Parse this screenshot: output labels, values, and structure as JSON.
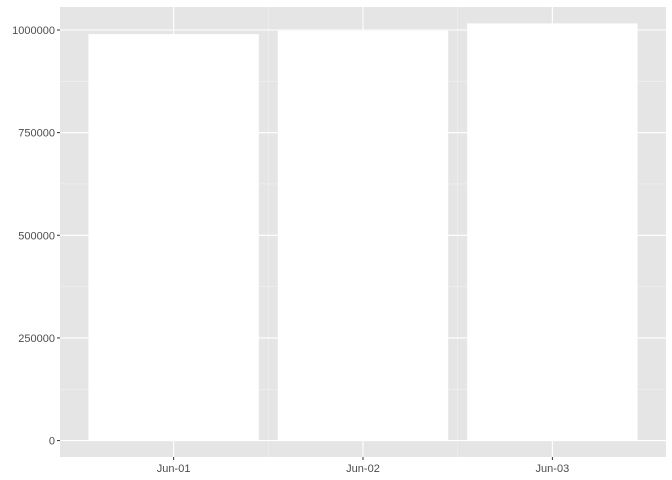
{
  "chart_data": {
    "type": "bar",
    "categories": [
      "Jun-01",
      "Jun-02",
      "Jun-03"
    ],
    "values": [
      990000,
      998000,
      1016000
    ],
    "ylim": [
      -40000,
      1056000
    ],
    "y_ticks": [
      0,
      250000,
      500000,
      750000,
      1000000
    ],
    "y_tick_labels": [
      "0",
      "250000",
      "500000",
      "750000",
      "1000000"
    ],
    "title": "",
    "xlabel": "",
    "ylabel": "",
    "grid": true,
    "legend": "none",
    "colors": {
      "panel": "#e5e5e5",
      "bar_fill": "#ffffff",
      "grid": "#ffffff",
      "text": "#4d4d4d",
      "tick": "#333333"
    }
  }
}
